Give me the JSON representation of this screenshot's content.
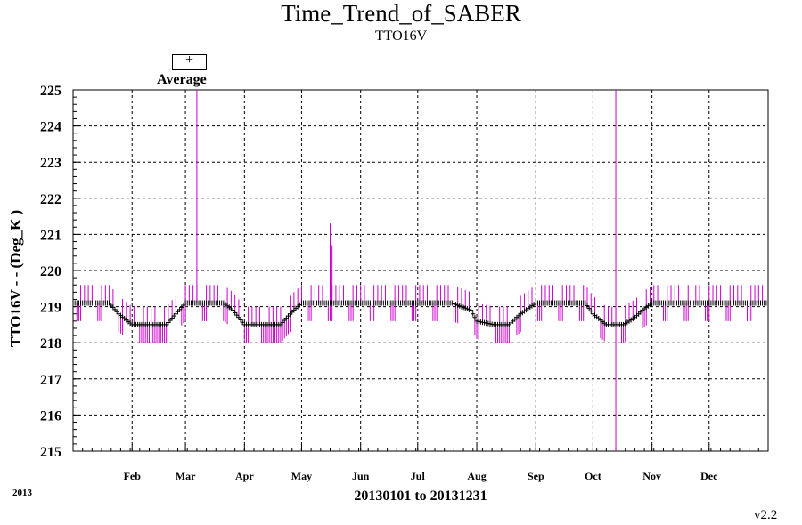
{
  "chart_data": {
    "type": "line",
    "title": "Time_Trend_of_SABER",
    "subtitle": "TTO16V",
    "ylabel": "TTO16V  - - (Deg_K )",
    "xlabel": "20130101 to 20131231",
    "year_label": "2013",
    "version": "v2.2",
    "legend": [
      {
        "symbol": "+",
        "label": "Average"
      }
    ],
    "ylim": [
      215,
      225
    ],
    "yticks": [
      "215",
      "216",
      "217",
      "218",
      "219",
      "220",
      "221",
      "222",
      "223",
      "224",
      "225"
    ],
    "xlim": [
      1,
      366
    ],
    "month_ticks": [
      {
        "label": "Feb",
        "day": 32
      },
      {
        "label": "Mar",
        "day": 60
      },
      {
        "label": "Apr",
        "day": 91
      },
      {
        "label": "May",
        "day": 121
      },
      {
        "label": "Jun",
        "day": 152
      },
      {
        "label": "Jul",
        "day": 182
      },
      {
        "label": "Aug",
        "day": 213
      },
      {
        "label": "Sep",
        "day": 244
      },
      {
        "label": "Oct",
        "day": 274
      },
      {
        "label": "Nov",
        "day": 305
      },
      {
        "label": "Dec",
        "day": 335
      }
    ],
    "grid": true,
    "colors": {
      "average": "#000000",
      "range": "#cc00cc"
    },
    "series": [
      {
        "name": "Average",
        "day": [
          1,
          8,
          20,
          25,
          32,
          40,
          50,
          55,
          60,
          70,
          80,
          85,
          91,
          100,
          110,
          115,
          121,
          130,
          140,
          152,
          170,
          182,
          200,
          210,
          213,
          222,
          230,
          236,
          244,
          252,
          260,
          270,
          274,
          281,
          290,
          296,
          300,
          305,
          320,
          340,
          366
        ],
        "value": [
          219.1,
          219.1,
          219.1,
          218.8,
          218.5,
          218.5,
          218.5,
          218.8,
          219.1,
          219.1,
          219.1,
          218.9,
          218.5,
          218.5,
          218.5,
          218.8,
          219.1,
          219.1,
          219.1,
          219.1,
          219.1,
          219.1,
          219.1,
          218.9,
          218.6,
          218.5,
          218.5,
          218.8,
          219.1,
          219.1,
          219.1,
          219.1,
          218.8,
          218.5,
          218.5,
          218.7,
          218.9,
          219.1,
          219.1,
          219.1,
          219.1
        ]
      }
    ],
    "spikes": [
      {
        "day": 66,
        "top": 225
      },
      {
        "day": 136,
        "top": 221.3
      },
      {
        "day": 137,
        "top": 220.7
      },
      {
        "day": 286,
        "low": 215,
        "top": 225
      }
    ]
  }
}
